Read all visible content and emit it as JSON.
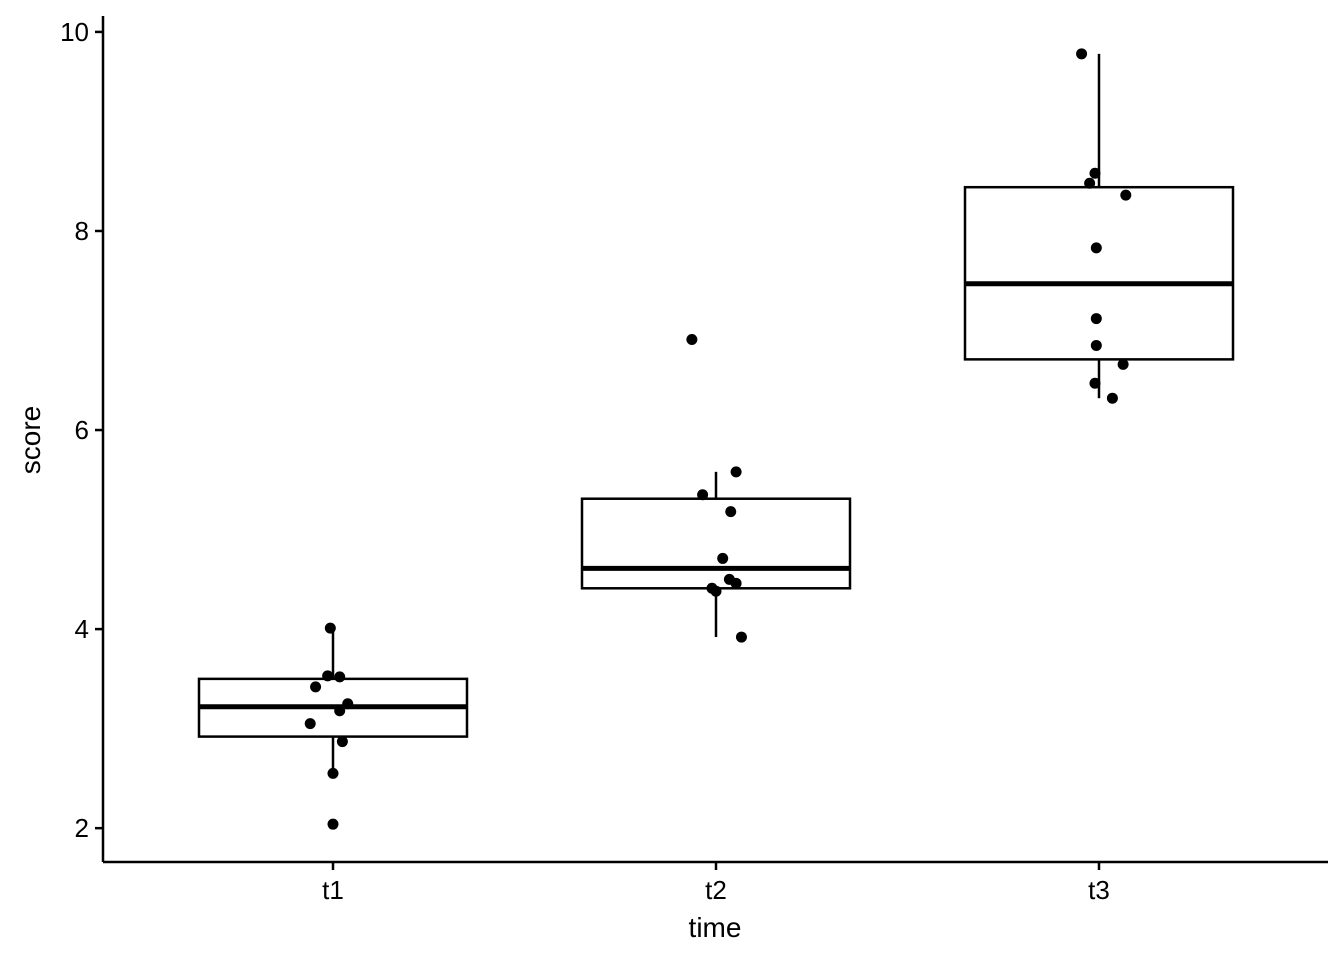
{
  "chart_data": {
    "type": "box",
    "title": "",
    "xlabel": "time",
    "ylabel": "score",
    "ylim": [
      1.66,
      10.16
    ],
    "yticks": [
      2,
      4,
      6,
      8,
      10
    ],
    "categories": [
      "t1",
      "t2",
      "t3"
    ],
    "boxes": [
      {
        "category": "t1",
        "whisker_low": 2.55,
        "q1": 2.92,
        "median": 3.22,
        "q3": 3.5,
        "whisker_high": 4.01,
        "outliers": [
          2.04
        ]
      },
      {
        "category": "t2",
        "whisker_low": 3.92,
        "q1": 4.41,
        "median": 4.61,
        "q3": 5.31,
        "whisker_high": 5.58,
        "outliers": [
          6.91
        ]
      },
      {
        "category": "t3",
        "whisker_low": 6.32,
        "q1": 6.71,
        "median": 7.47,
        "q3": 8.44,
        "whisker_high": 9.78,
        "outliers": []
      }
    ],
    "points": [
      {
        "category": "t1",
        "values": [
          4.01,
          3.53,
          3.52,
          3.42,
          3.25,
          3.18,
          3.05,
          2.87,
          2.55,
          2.04
        ],
        "jitter": [
          -0.02,
          -0.04,
          0.05,
          -0.13,
          0.11,
          0.05,
          -0.17,
          0.07,
          0.0,
          0.0
        ]
      },
      {
        "category": "t2",
        "values": [
          6.91,
          5.58,
          5.35,
          5.18,
          4.71,
          4.5,
          4.46,
          4.41,
          4.38,
          3.92
        ],
        "jitter": [
          -0.18,
          0.15,
          -0.1,
          0.11,
          0.05,
          0.1,
          0.15,
          -0.03,
          0.0,
          0.19
        ]
      },
      {
        "category": "t3",
        "values": [
          9.78,
          8.58,
          8.48,
          8.36,
          7.83,
          7.12,
          6.85,
          6.66,
          6.47,
          6.32
        ],
        "jitter": [
          -0.13,
          -0.03,
          -0.07,
          0.2,
          -0.02,
          -0.02,
          -0.02,
          0.18,
          -0.03,
          0.1
        ]
      }
    ]
  }
}
